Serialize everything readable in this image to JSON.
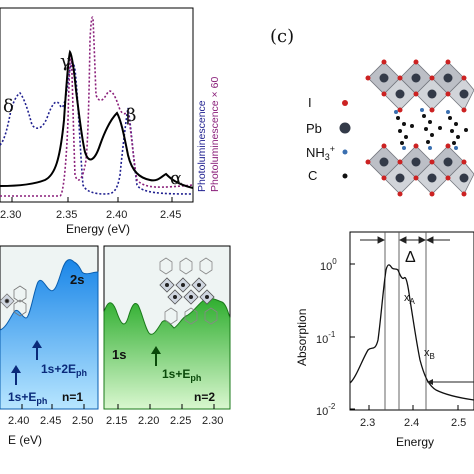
{
  "panel_a": {
    "peaks": [
      "δ",
      "γ",
      "β",
      "α"
    ],
    "xticks": [
      "2.30",
      "2.35",
      "2.40",
      "2.45"
    ],
    "xlabel": "Energy (eV)",
    "legend": [
      "Photoluminescence",
      "Photoluminescence × 60"
    ],
    "colors": {
      "solid": "#000000",
      "dotted_blue": "#1f1f8f",
      "dotted_purple": "#8a1f7a"
    }
  },
  "panel_b_left": {
    "label_2s": "2s",
    "arrow1": "1s+2E",
    "arrow1_sub": "ph",
    "arrow2": "1s+E",
    "arrow2_sub": "ph",
    "nlabel": "n=1",
    "xticks": [
      "2.40",
      "2.45",
      "2.50"
    ],
    "fill_color": "#33aaff"
  },
  "panel_b_right": {
    "label_1s": "1s",
    "arrow": "1s+E",
    "arrow_sub": "ph",
    "nlabel": "n=2",
    "xticks": [
      "2.15",
      "2.20",
      "2.25",
      "2.30"
    ],
    "fill_color": "#4fcf4f"
  },
  "panel_b_xlabel": "E (eV)",
  "panel_c": {
    "letter": "(c)",
    "legend": [
      {
        "label": "I",
        "color": "#cc2222"
      },
      {
        "label": "Pb",
        "color": "#333a48"
      },
      {
        "label": "NH",
        "sup": "3",
        "sup_sign": "+",
        "color": "#3a6fb0"
      },
      {
        "label": "C",
        "color": "#111111"
      }
    ],
    "ylabel": "Absorption",
    "yticks": [
      {
        "base": "10",
        "exp": "0"
      },
      {
        "base": "10",
        "exp": "-1"
      },
      {
        "base": "10",
        "exp": "-2"
      }
    ],
    "xticks": [
      "2.3",
      "2.4",
      "2.5"
    ],
    "xlabel": "Energy",
    "delta": "Δ",
    "xa": "x",
    "xa_sub": "A",
    "xb": "x",
    "xb_sub": "B"
  }
}
